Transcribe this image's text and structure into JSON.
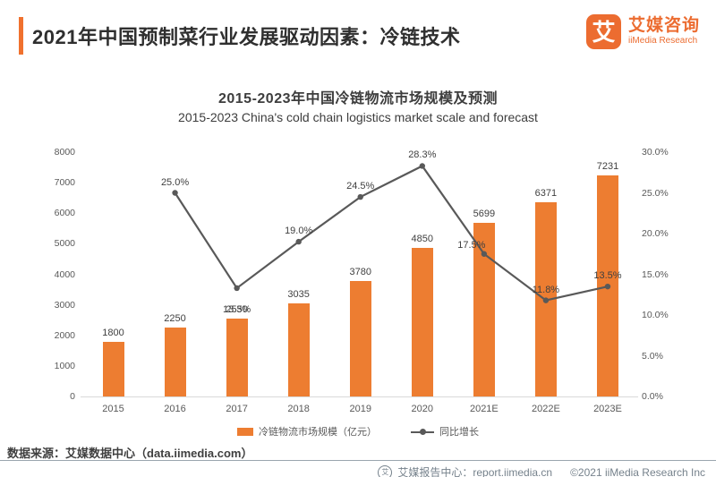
{
  "header": {
    "title": "2021年中国预制菜行业发展驱动因素：冷链技术",
    "logo": {
      "mark": "艾",
      "name_cn": "艾媒咨询",
      "name_en": "iiMedia Research"
    }
  },
  "chart": {
    "title": "2015-2023年中国冷链物流市场规模及预测",
    "subtitle": "2015-2023 China's cold chain logistics market scale and forecast"
  },
  "chart_data": {
    "type": "bar",
    "categories": [
      "2015",
      "2016",
      "2017",
      "2018",
      "2019",
      "2020",
      "2021E",
      "2022E",
      "2023E"
    ],
    "series": [
      {
        "name": "冷链物流市场规模（亿元）",
        "type": "bar",
        "axis": "left",
        "color": "#ED7D31",
        "values": [
          1800,
          2250,
          2550,
          3035,
          3780,
          4850,
          5699,
          6371,
          7231
        ],
        "labels": [
          "1800",
          "2250",
          "2550",
          "3035",
          "3780",
          "4850",
          "5699",
          "6371",
          "7231"
        ]
      },
      {
        "name": "同比增长",
        "type": "line",
        "axis": "right",
        "color": "#595959",
        "values": [
          null,
          25.0,
          13.3,
          19.0,
          24.5,
          28.3,
          17.5,
          11.8,
          13.5
        ],
        "labels": [
          null,
          "25.0%",
          "13.3%",
          "19.0%",
          "24.5%",
          "28.3%",
          "17.5%",
          "11.8%",
          "13.5%"
        ]
      }
    ],
    "left_axis": {
      "min": 0,
      "max": 8000,
      "step": 1000
    },
    "right_axis": {
      "min": 0,
      "max": 30,
      "step": 5,
      "format": "percent_one_decimal"
    },
    "grid": false,
    "legend_position": "bottom",
    "title": "2015-2023年中国冷链物流市场规模及预测",
    "subtitle": "2015-2023 China's cold chain logistics market scale and forecast"
  },
  "legend": {
    "bar_label": "冷链物流市场规模（亿元）",
    "line_label": "同比增长"
  },
  "source": {
    "text": "数据来源：艾媒数据中心（data.iimedia.com）"
  },
  "footer": {
    "icon": "iimedia-mark-icon",
    "report_center": "艾媒报告中心：report.iimedia.cn",
    "copyright": "©2021  iiMedia Research  Inc"
  },
  "colors": {
    "brand_orange": "#EC6C30",
    "bar_orange": "#ED7D31",
    "line_gray": "#595959",
    "accent_bar": "#F0712E"
  }
}
